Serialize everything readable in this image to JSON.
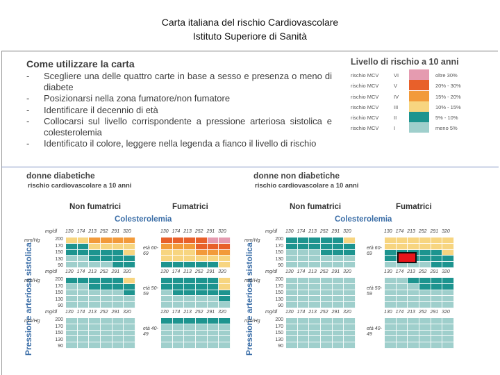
{
  "slide": {
    "title_line1": "Carta italiana del rischio Cardiovascolare",
    "title_line2": "Istituto Superiore di Sanità"
  },
  "instructions": {
    "heading": "Come utilizzare la carta",
    "items": [
      "Scegliere una delle quattro carte in base a sesso e presenza o meno di diabete",
      "Posizionarsi nella zona fumatore/non fumatore",
      "Identificare il decennio di età",
      "Collocarsi sul livello corrispondente a pressione arteriosa sistolica e colesterolemia",
      "Identificato il colore, leggere nella legenda a fianco il livello di rischio"
    ]
  },
  "legend": {
    "title": "Livello di rischio a 10 anni",
    "rows": [
      {
        "label": "rischio MCV",
        "level": "VI",
        "range": "oltre  30%",
        "color": "#e59bb0"
      },
      {
        "label": "rischio MCV",
        "level": "V",
        "range": "20% - 30%",
        "color": "#e8602a"
      },
      {
        "label": "rischio MCV",
        "level": "IV",
        "range": "15% - 20%",
        "color": "#f29a3a"
      },
      {
        "label": "rischio MCV",
        "level": "III",
        "range": "10% - 15%",
        "color": "#f7d580"
      },
      {
        "label": "rischio MCV",
        "level": "II",
        "range": "5% - 10%",
        "color": "#1d948f"
      },
      {
        "label": "rischio MCV",
        "level": "I",
        "range": "meno  5%",
        "color": "#9fcfcc"
      }
    ]
  },
  "chart_data": {
    "type": "heatmap",
    "risk_levels": [
      "I",
      "II",
      "III",
      "IV",
      "V",
      "VI"
    ],
    "cholesterol_ticks": [
      "130",
      "174",
      "213",
      "252",
      "291",
      "320"
    ],
    "pressure_ticks": [
      "200",
      "170",
      "150",
      "130",
      "90"
    ],
    "chol_unit": "mg/dl",
    "pressure_unit": "mm/Hg",
    "groups": [
      {
        "title": "donne diabetiche",
        "subtitle": "rischio cardiovascolare a 10 anni",
        "col_left": "Non fumatrici",
        "col_right": "Fumatrici",
        "chol_header": "Colesterolemia",
        "age_bands": [
          {
            "age": "età 60-69",
            "left": [
              [
                3,
                3,
                4,
                4,
                4,
                4
              ],
              [
                2,
                2,
                3,
                3,
                3,
                3
              ],
              [
                2,
                2,
                2,
                2,
                2,
                3
              ],
              [
                1,
                1,
                2,
                2,
                2,
                2
              ],
              [
                1,
                1,
                1,
                1,
                2,
                2
              ]
            ],
            "right": [
              [
                5,
                5,
                5,
                5,
                6,
                6
              ],
              [
                4,
                4,
                4,
                5,
                5,
                5
              ],
              [
                3,
                3,
                3,
                4,
                4,
                4
              ],
              [
                3,
                3,
                3,
                3,
                3,
                3
              ],
              [
                2,
                2,
                2,
                2,
                2,
                3
              ]
            ]
          },
          {
            "age": "età 50-59",
            "left": [
              [
                2,
                2,
                2,
                2,
                2,
                3
              ],
              [
                1,
                1,
                2,
                2,
                2,
                2
              ],
              [
                1,
                1,
                1,
                1,
                1,
                2
              ],
              [
                1,
                1,
                1,
                1,
                1,
                1
              ],
              [
                1,
                1,
                1,
                1,
                1,
                1
              ]
            ],
            "right": [
              [
                2,
                2,
                2,
                2,
                2,
                3
              ],
              [
                2,
                2,
                2,
                2,
                2,
                3
              ],
              [
                1,
                2,
                2,
                2,
                2,
                2
              ],
              [
                1,
                1,
                1,
                1,
                1,
                2
              ],
              [
                1,
                1,
                1,
                1,
                1,
                1
              ]
            ]
          },
          {
            "age": "età 40-49",
            "left": [
              [
                1,
                1,
                1,
                1,
                1,
                1
              ],
              [
                1,
                1,
                1,
                1,
                1,
                1
              ],
              [
                1,
                1,
                1,
                1,
                1,
                1
              ],
              [
                1,
                1,
                1,
                1,
                1,
                1
              ],
              [
                1,
                1,
                1,
                1,
                1,
                1
              ]
            ],
            "right": [
              [
                2,
                2,
                2,
                2,
                2,
                2
              ],
              [
                1,
                1,
                1,
                1,
                1,
                1
              ],
              [
                1,
                1,
                1,
                1,
                1,
                1
              ],
              [
                1,
                1,
                1,
                1,
                1,
                1
              ],
              [
                1,
                1,
                1,
                1,
                1,
                1
              ]
            ]
          }
        ]
      },
      {
        "title": "donne non diabetiche",
        "subtitle": "rischio cardiovascolare a 10 anni",
        "col_left": "Non fumatrici",
        "col_right": "Fumatrici",
        "chol_header": "Colesterolemia",
        "age_bands": [
          {
            "age": "età 60-69",
            "left": [
              [
                2,
                2,
                2,
                2,
                2,
                3
              ],
              [
                2,
                2,
                2,
                2,
                2,
                2
              ],
              [
                1,
                1,
                1,
                2,
                2,
                2
              ],
              [
                1,
                1,
                1,
                1,
                1,
                1
              ],
              [
                1,
                1,
                1,
                1,
                1,
                1
              ]
            ],
            "right": [
              [
                3,
                3,
                3,
                3,
                3,
                3
              ],
              [
                3,
                3,
                3,
                3,
                3,
                3
              ],
              [
                2,
                2,
                2,
                2,
                2,
                3
              ],
              [
                2,
                2,
                2,
                2,
                2,
                2
              ],
              [
                1,
                1,
                1,
                1,
                2,
                2
              ]
            ]
          },
          {
            "age": "età 50-59",
            "left": [
              [
                1,
                1,
                1,
                1,
                1,
                1
              ],
              [
                1,
                1,
                1,
                1,
                1,
                1
              ],
              [
                1,
                1,
                1,
                1,
                1,
                1
              ],
              [
                1,
                1,
                1,
                1,
                1,
                1
              ],
              [
                1,
                1,
                1,
                1,
                1,
                1
              ]
            ],
            "right": [
              [
                1,
                1,
                2,
                2,
                2,
                2
              ],
              [
                1,
                1,
                1,
                2,
                2,
                2
              ],
              [
                1,
                1,
                1,
                1,
                1,
                1
              ],
              [
                1,
                1,
                1,
                1,
                1,
                1
              ],
              [
                1,
                1,
                1,
                1,
                1,
                1
              ]
            ]
          },
          {
            "age": "età 40-49",
            "left": [
              [
                1,
                1,
                1,
                1,
                1,
                1
              ],
              [
                1,
                1,
                1,
                1,
                1,
                1
              ],
              [
                1,
                1,
                1,
                1,
                1,
                1
              ],
              [
                1,
                1,
                1,
                1,
                1,
                1
              ],
              [
                1,
                1,
                1,
                1,
                1,
                1
              ]
            ],
            "right": [
              [
                1,
                1,
                1,
                1,
                1,
                1
              ],
              [
                1,
                1,
                1,
                1,
                1,
                1
              ],
              [
                1,
                1,
                1,
                1,
                1,
                1
              ],
              [
                1,
                1,
                1,
                1,
                1,
                1
              ],
              [
                1,
                1,
                1,
                1,
                1,
                1
              ]
            ]
          }
        ]
      }
    ],
    "axis_label": "Pressione arteriosa sistolica",
    "highlight": {
      "group": "donne non diabetiche",
      "column": "Fumatrici",
      "age": "età 60-69"
    }
  }
}
